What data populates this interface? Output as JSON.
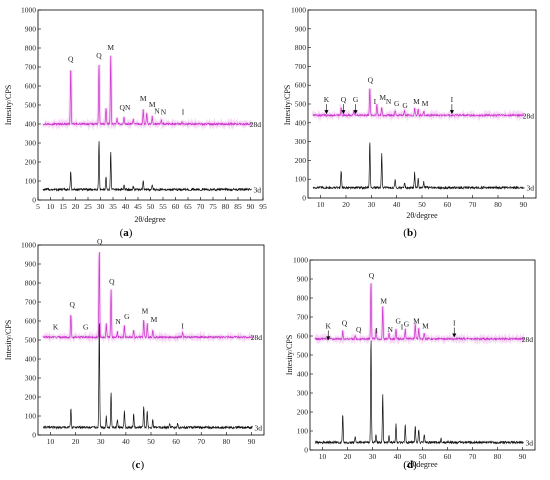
{
  "chart_data": [
    {
      "panel": "a",
      "panel_label": "(a)",
      "type": "line",
      "xlabel": "2θ/degree",
      "ylabel": "Intesity/CPS",
      "xlim": [
        5,
        95
      ],
      "ylim": [
        0,
        1000
      ],
      "xticks": [
        5,
        10,
        15,
        20,
        25,
        30,
        35,
        40,
        45,
        50,
        55,
        60,
        65,
        70,
        75,
        80,
        85,
        90,
        95
      ],
      "yticks": [
        0,
        100,
        200,
        300,
        400,
        500,
        600,
        700,
        800,
        900,
        1000
      ],
      "series": [
        {
          "name": "28d",
          "color": "#cc33cc",
          "baseline": 400,
          "peaks": [
            [
              18.1,
              300
            ],
            [
              29.4,
              320
            ],
            [
              32.2,
              85
            ],
            [
              34.1,
              360
            ],
            [
              36.6,
              30
            ],
            [
              39.4,
              35
            ],
            [
              43.1,
              25
            ],
            [
              47.1,
              75
            ],
            [
              48.5,
              55
            ],
            [
              50.7,
              40
            ],
            [
              54.3,
              20
            ],
            [
              62.6,
              15
            ]
          ]
        },
        {
          "name": "3d",
          "color": "#111111",
          "baseline": 55,
          "peaks": [
            [
              18.1,
              95
            ],
            [
              29.4,
              260
            ],
            [
              32.2,
              70
            ],
            [
              34.1,
              200
            ],
            [
              39.4,
              25
            ],
            [
              43.1,
              20
            ],
            [
              47.1,
              50
            ],
            [
              50.7,
              25
            ]
          ]
        }
      ],
      "annotations": [
        {
          "text": "Q",
          "x": 18.1,
          "y": 728
        },
        {
          "text": "Q",
          "x": 29.4,
          "y": 748
        },
        {
          "text": "M",
          "x": 34.1,
          "y": 790
        },
        {
          "text": "Q",
          "x": 38.7,
          "y": 475
        },
        {
          "text": "N",
          "x": 40.9,
          "y": 475
        },
        {
          "text": "M",
          "x": 47.1,
          "y": 520
        },
        {
          "text": "M",
          "x": 50.7,
          "y": 490
        },
        {
          "text": "N",
          "x": 52.6,
          "y": 455
        },
        {
          "text": "N",
          "x": 55.2,
          "y": 450
        },
        {
          "text": "I",
          "x": 63.0,
          "y": 450
        }
      ]
    },
    {
      "panel": "b",
      "panel_label": "(b)",
      "type": "line",
      "xlabel": "2θ/degree",
      "ylabel": "Intesity/CPS",
      "xlim": [
        5,
        95
      ],
      "ylim": [
        0,
        1000
      ],
      "xticks": [
        10,
        20,
        30,
        40,
        50,
        60,
        70,
        80,
        90
      ],
      "yticks": [
        0,
        100,
        200,
        300,
        400,
        500,
        600,
        700,
        800,
        900,
        1000
      ],
      "series": [
        {
          "name": "28d",
          "color": "#cc33cc",
          "baseline": 440,
          "peaks": [
            [
              18.1,
              40
            ],
            [
              23.1,
              25
            ],
            [
              29.4,
              150
            ],
            [
              32.2,
              60
            ],
            [
              34.1,
              45
            ],
            [
              39.4,
              25
            ],
            [
              43.1,
              25
            ],
            [
              47.1,
              40
            ],
            [
              48.5,
              30
            ],
            [
              50.7,
              20
            ]
          ]
        },
        {
          "name": "3d",
          "color": "#111111",
          "baseline": 55,
          "peaks": [
            [
              18.1,
              95
            ],
            [
              29.4,
              250
            ],
            [
              34.1,
              180
            ],
            [
              39.4,
              40
            ],
            [
              43.1,
              30
            ],
            [
              47.1,
              80
            ],
            [
              48.5,
              55
            ],
            [
              50.7,
              30
            ]
          ]
        }
      ],
      "annotations": [
        {
          "text": "K",
          "x": 12.3,
          "y": 510,
          "arrow": true
        },
        {
          "text": "Q",
          "x": 19.0,
          "y": 510,
          "arrow": true
        },
        {
          "text": "G",
          "x": 23.8,
          "y": 510,
          "arrow": true
        },
        {
          "text": "Q",
          "x": 29.6,
          "y": 615
        },
        {
          "text": "I",
          "x": 31.4,
          "y": 500
        },
        {
          "text": "M",
          "x": 34.5,
          "y": 520
        },
        {
          "text": "N",
          "x": 36.8,
          "y": 500
        },
        {
          "text": "G",
          "x": 40.0,
          "y": 490
        },
        {
          "text": "G",
          "x": 43.3,
          "y": 480
        },
        {
          "text": "M",
          "x": 47.8,
          "y": 500
        },
        {
          "text": "M",
          "x": 51.2,
          "y": 490
        },
        {
          "text": "I",
          "x": 61.8,
          "y": 510,
          "arrow": true
        }
      ]
    },
    {
      "panel": "c",
      "panel_label": "(c)",
      "type": "line",
      "xlabel": "",
      "ylabel": "Intesity/CPS",
      "xlim": [
        5,
        95
      ],
      "ylim": [
        0,
        1000
      ],
      "xticks": [
        10,
        20,
        30,
        40,
        50,
        60,
        70,
        80,
        90
      ],
      "yticks": [
        0,
        100,
        200,
        300,
        400,
        500,
        600,
        700,
        800,
        900,
        1000
      ],
      "series": [
        {
          "name": "28d",
          "color": "#cc33cc",
          "baseline": 515,
          "peaks": [
            [
              18.1,
              120
            ],
            [
              29.4,
              460
            ],
            [
              32.2,
              70
            ],
            [
              34.1,
              250
            ],
            [
              36.6,
              30
            ],
            [
              39.4,
              60
            ],
            [
              43.1,
              40
            ],
            [
              47.1,
              95
            ],
            [
              48.5,
              70
            ],
            [
              50.7,
              40
            ],
            [
              62.6,
              25
            ]
          ]
        },
        {
          "name": "3d",
          "color": "#111111",
          "baseline": 40,
          "peaks": [
            [
              18.1,
              100
            ],
            [
              29.4,
              560
            ],
            [
              32.2,
              60
            ],
            [
              34.1,
              185
            ],
            [
              36.6,
              40
            ],
            [
              39.4,
              90
            ],
            [
              43.1,
              70
            ],
            [
              47.1,
              110
            ],
            [
              48.5,
              90
            ],
            [
              50.7,
              40
            ],
            [
              57.4,
              20
            ],
            [
              60.6,
              20
            ]
          ]
        }
      ],
      "annotations": [
        {
          "text": "K",
          "x": 12.0,
          "y": 555
        },
        {
          "text": "Q",
          "x": 18.6,
          "y": 675
        },
        {
          "text": "G",
          "x": 24.0,
          "y": 555
        },
        {
          "text": "Q",
          "x": 29.6,
          "y": 1005
        },
        {
          "text": "Q",
          "x": 34.4,
          "y": 795
        },
        {
          "text": "N",
          "x": 36.9,
          "y": 585
        },
        {
          "text": "G",
          "x": 40.4,
          "y": 610
        },
        {
          "text": "M",
          "x": 47.6,
          "y": 640
        },
        {
          "text": "M",
          "x": 51.2,
          "y": 595
        },
        {
          "text": "I",
          "x": 62.6,
          "y": 560
        }
      ]
    },
    {
      "panel": "d",
      "panel_label": "(d)",
      "type": "line",
      "xlabel": "2θ/degree",
      "ylabel": "Intesity/CPS",
      "xlim": [
        5,
        95
      ],
      "ylim": [
        0,
        1000
      ],
      "xticks": [
        10,
        20,
        30,
        40,
        50,
        60,
        70,
        80,
        90
      ],
      "yticks": [
        0,
        100,
        200,
        300,
        400,
        500,
        600,
        700,
        800,
        900,
        1000
      ],
      "series": [
        {
          "name": "28d",
          "color": "#cc33cc",
          "baseline": 585,
          "peaks": [
            [
              18.1,
              45
            ],
            [
              23.1,
              20
            ],
            [
              29.4,
              305
            ],
            [
              31.4,
              50
            ],
            [
              34.1,
              175
            ],
            [
              36.6,
              30
            ],
            [
              39.4,
              55
            ],
            [
              43.1,
              50
            ],
            [
              47.1,
              80
            ],
            [
              48.5,
              55
            ],
            [
              50.7,
              30
            ]
          ]
        },
        {
          "name": "3d",
          "color": "#111111",
          "baseline": 40,
          "peaks": [
            [
              18.1,
              150
            ],
            [
              23.1,
              30
            ],
            [
              29.4,
              555
            ],
            [
              31.4,
              40
            ],
            [
              34.1,
              250
            ],
            [
              36.6,
              35
            ],
            [
              39.4,
              95
            ],
            [
              43.1,
              95
            ],
            [
              47.1,
              90
            ],
            [
              48.5,
              70
            ],
            [
              50.7,
              45
            ],
            [
              57.4,
              20
            ]
          ]
        }
      ],
      "annotations": [
        {
          "text": "K",
          "x": 12.3,
          "y": 640,
          "arrow": true
        },
        {
          "text": "Q",
          "x": 18.8,
          "y": 655
        },
        {
          "text": "Q",
          "x": 24.5,
          "y": 620
        },
        {
          "text": "Q",
          "x": 29.6,
          "y": 905
        },
        {
          "text": "I",
          "x": 31.6,
          "y": 615
        },
        {
          "text": "M",
          "x": 34.5,
          "y": 770
        },
        {
          "text": "N",
          "x": 37.1,
          "y": 620
        },
        {
          "text": "G",
          "x": 40.3,
          "y": 665
        },
        {
          "text": "I",
          "x": 41.8,
          "y": 635
        },
        {
          "text": "G",
          "x": 43.6,
          "y": 650
        },
        {
          "text": "M",
          "x": 47.6,
          "y": 665
        },
        {
          "text": "M",
          "x": 51.2,
          "y": 640
        },
        {
          "text": "I",
          "x": 62.7,
          "y": 655,
          "arrow": true
        }
      ]
    }
  ]
}
